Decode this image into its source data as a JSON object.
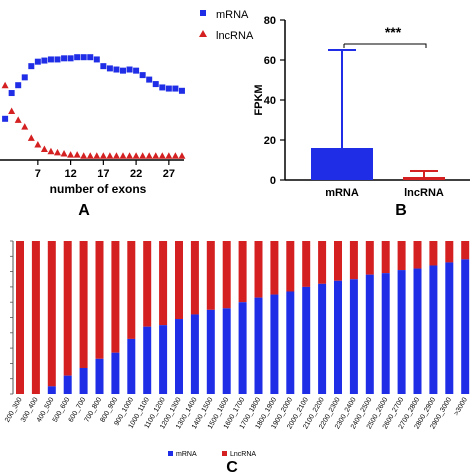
{
  "charts": {
    "A": {
      "type": "scatter",
      "panel_label": "A",
      "xlabel": "number of exons",
      "x_ticks": [
        7,
        12,
        17,
        22,
        27
      ],
      "xlim": [
        2,
        30
      ],
      "ylim": [
        0,
        100
      ],
      "legend": [
        "mRNA",
        "lncRNA"
      ]
    },
    "B": {
      "type": "bar",
      "panel_label": "B",
      "ylabel": "FPKM",
      "y_ticks": [
        "0",
        "20",
        "40",
        "60",
        "80"
      ],
      "significance": "***",
      "categories": [
        "mRNA",
        "lncRNA"
      ]
    },
    "C": {
      "type": "bar",
      "panel_label": "C",
      "legend": [
        "mRNA",
        "LncRNA"
      ]
    }
  },
  "chart_data": [
    {
      "type": "scatter",
      "xlabel": "number of exons",
      "series": [
        {
          "name": "mRNA",
          "color": "#1f2ee6",
          "x": [
            2,
            3,
            4,
            5,
            6,
            7,
            8,
            9,
            10,
            11,
            12,
            13,
            14,
            15,
            16,
            17,
            18,
            19,
            20,
            21,
            22,
            23,
            24,
            25,
            26,
            27,
            28,
            29
          ],
          "values": [
            35,
            58,
            65,
            72,
            82,
            86,
            87,
            88,
            88,
            89,
            89,
            90,
            90,
            90,
            88,
            82,
            80,
            79,
            78,
            79,
            78,
            74,
            70,
            66,
            63,
            62,
            62,
            60
          ]
        },
        {
          "name": "lncRNA",
          "color": "#d42020",
          "x": [
            2,
            3,
            4,
            5,
            6,
            7,
            8,
            9,
            10,
            11,
            12,
            13,
            14,
            15,
            16,
            17,
            18,
            19,
            20,
            21,
            22,
            23,
            24,
            25,
            26,
            27,
            28,
            29
          ],
          "values": [
            65,
            42,
            34,
            28,
            18,
            12,
            8,
            6,
            5,
            4,
            3,
            3,
            2,
            2,
            2,
            2,
            2,
            2,
            2,
            2,
            2,
            2,
            2,
            2,
            2,
            2,
            2,
            2
          ]
        }
      ],
      "xlim": [
        2,
        30
      ],
      "ylim": [
        0,
        100
      ]
    },
    {
      "type": "bar",
      "categories": [
        "mRNA",
        "lncRNA"
      ],
      "values": [
        16,
        1.5
      ],
      "error_upper": [
        65,
        4.5
      ],
      "colors": [
        "#1f2ee6",
        "#d42020"
      ],
      "ylabel": "FPKM",
      "ylim": [
        0,
        80
      ],
      "annotation": "***"
    },
    {
      "type": "bar",
      "stacked": true,
      "categories": [
        "200_300",
        "300_400",
        "400_500",
        "500_600",
        "600_700",
        "700_800",
        "800_900",
        "900_1000",
        "1000_1100",
        "1100_1200",
        "1200_1300",
        "1300_1400",
        "1400_1500",
        "1500_1600",
        "1600_1700",
        "1700_1800",
        "1800_1900",
        "1900_2000",
        "2000_2100",
        "2100_2200",
        "2200_2300",
        "2300_2400",
        "2400_2500",
        "2500_2600",
        "2600_2700",
        "2700_2800",
        "2800_2900",
        "2900_3000",
        ">3000"
      ],
      "series": [
        {
          "name": "mRNA",
          "color": "#1f2ee6",
          "values": [
            0,
            0,
            5,
            12,
            17,
            23,
            27,
            36,
            44,
            45,
            49,
            52,
            55,
            56,
            60,
            63,
            65,
            67,
            70,
            72,
            74,
            75,
            78,
            79,
            81,
            82,
            84,
            86,
            88
          ]
        },
        {
          "name": "LncRNA",
          "color": "#d42020",
          "values": [
            100,
            100,
            95,
            88,
            83,
            77,
            73,
            64,
            56,
            55,
            51,
            48,
            45,
            44,
            40,
            37,
            35,
            33,
            30,
            28,
            26,
            25,
            22,
            21,
            19,
            18,
            16,
            14,
            12
          ]
        }
      ],
      "ylim": [
        0,
        100
      ]
    }
  ]
}
